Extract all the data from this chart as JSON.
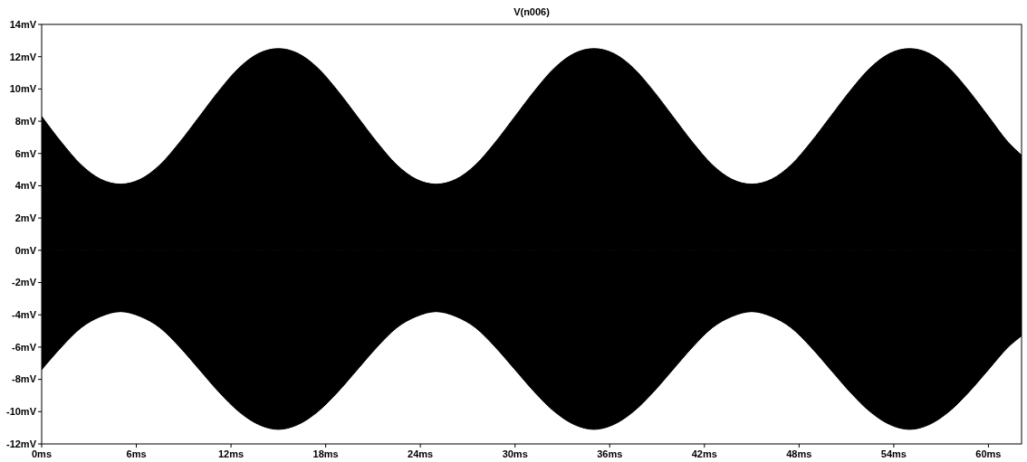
{
  "chart_data": {
    "type": "area",
    "title": "V(n006)",
    "x": [
      0,
      1.25,
      2.5,
      3.75,
      5,
      6.25,
      7.5,
      8.75,
      10,
      11.25,
      12.5,
      13.75,
      15,
      16.25,
      17.5,
      18.75,
      20,
      21.25,
      22.5,
      23.75,
      25,
      26.25,
      27.5,
      28.75,
      30,
      31.25,
      32.5,
      33.75,
      35,
      36.25,
      37.5,
      38.75,
      40,
      41.25,
      42.5,
      43.75,
      45,
      46.25,
      47.5,
      48.75,
      50,
      51.25,
      52.5,
      53.75,
      55,
      56.25,
      57.5,
      58.75,
      60,
      61.25,
      62.1
    ],
    "series": [
      {
        "color": "#000000",
        "values": [
          8.3,
          6.7,
          5.3,
          4.4,
          4.1,
          4.4,
          5.3,
          6.7,
          8.3,
          9.9,
          11.3,
          12.2,
          12.5,
          12.2,
          11.3,
          9.9,
          8.3,
          6.7,
          5.3,
          4.4,
          4.1,
          4.4,
          5.3,
          6.7,
          8.3,
          9.9,
          11.3,
          12.2,
          12.5,
          12.2,
          11.3,
          9.9,
          8.3,
          6.7,
          5.3,
          4.4,
          4.1,
          4.4,
          5.3,
          6.7,
          8.3,
          9.9,
          11.3,
          12.2,
          12.5,
          12.2,
          11.3,
          9.9,
          8.3,
          6.7,
          5.9
        ]
      },
      {
        "color": "#000000",
        "values": [
          -7.4,
          -6.0,
          -4.8,
          -4.1,
          -3.8,
          -4.1,
          -4.8,
          -6.0,
          -7.4,
          -8.8,
          -10.0,
          -10.8,
          -11.1,
          -10.8,
          -10.0,
          -8.8,
          -7.4,
          -6.0,
          -4.8,
          -4.1,
          -3.8,
          -4.1,
          -4.8,
          -6.0,
          -7.4,
          -8.8,
          -10.0,
          -10.8,
          -11.1,
          -10.8,
          -10.0,
          -8.8,
          -7.4,
          -6.0,
          -4.8,
          -4.1,
          -3.8,
          -4.1,
          -4.8,
          -6.0,
          -7.4,
          -8.8,
          -10.0,
          -10.8,
          -11.1,
          -10.8,
          -10.0,
          -8.8,
          -7.4,
          -6.0,
          -5.3
        ]
      }
    ],
    "xlim": [
      0,
      62.1
    ],
    "ylim": [
      -12,
      14
    ],
    "xticks": [
      {
        "value": 0,
        "label": "0ms"
      },
      {
        "value": 6,
        "label": "6ms"
      },
      {
        "value": 12,
        "label": "12ms"
      },
      {
        "value": 18,
        "label": "18ms"
      },
      {
        "value": 24,
        "label": "24ms"
      },
      {
        "value": 30,
        "label": "30ms"
      },
      {
        "value": 36,
        "label": "36ms"
      },
      {
        "value": 42,
        "label": "42ms"
      },
      {
        "value": 48,
        "label": "48ms"
      },
      {
        "value": 54,
        "label": "54ms"
      },
      {
        "value": 60,
        "label": "60ms"
      }
    ],
    "yticks": [
      {
        "value": -12,
        "label": "-12mV"
      },
      {
        "value": -10,
        "label": "-10mV"
      },
      {
        "value": -8,
        "label": "-8mV"
      },
      {
        "value": -6,
        "label": "-6mV"
      },
      {
        "value": -4,
        "label": "-4mV"
      },
      {
        "value": -2,
        "label": "-2mV"
      },
      {
        "value": 0,
        "label": "0mV"
      },
      {
        "value": 2,
        "label": "2mV"
      },
      {
        "value": 4,
        "label": "4mV"
      },
      {
        "value": 6,
        "label": "6mV"
      },
      {
        "value": 8,
        "label": "8mV"
      },
      {
        "value": 10,
        "label": "10mV"
      },
      {
        "value": 12,
        "label": "12mV"
      },
      {
        "value": 14,
        "label": "14mV"
      }
    ]
  }
}
